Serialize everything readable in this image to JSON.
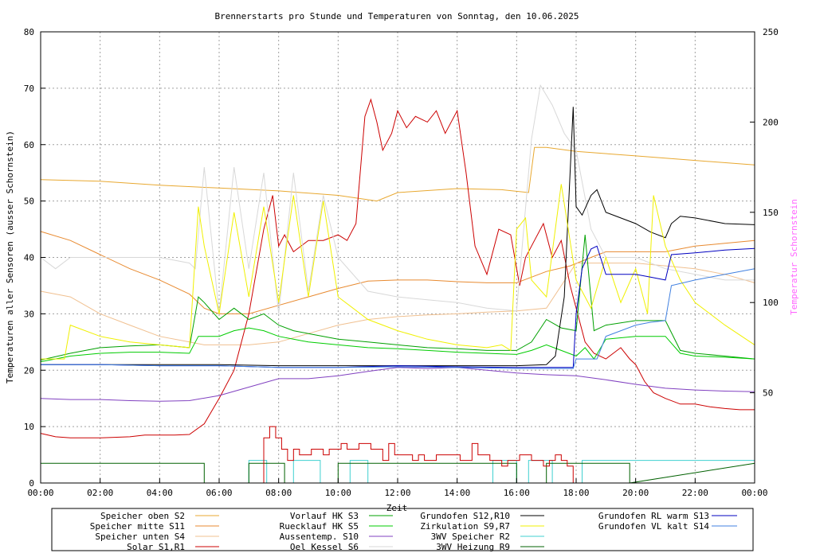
{
  "chart_data": {
    "type": "line",
    "title": "Brennerstarts pro Stunde und Temperaturen von Sonntag, den 10.06.2025",
    "xlabel": "Zeit",
    "ylabel": "Temperaturen aller Sensoren (ausser Schornstein)",
    "y2label": "Temperatur Schornstein",
    "xlim": [
      0,
      24
    ],
    "ylim": [
      0,
      80
    ],
    "y2lim": [
      0,
      250
    ],
    "grid": true,
    "x_ticks": [
      "00:00",
      "02:00",
      "04:00",
      "06:00",
      "08:00",
      "10:00",
      "12:00",
      "14:00",
      "16:00",
      "18:00",
      "20:00",
      "22:00",
      "00:00"
    ],
    "y_ticks": [
      "0",
      "10",
      "20",
      "30",
      "40",
      "50",
      "60",
      "70",
      "80"
    ],
    "y2_ticks": [
      "50",
      "100",
      "150",
      "200",
      "250"
    ],
    "legend_position": "bottom",
    "legend": [
      {
        "name": "Speicher oben",
        "sensor": "S2",
        "color": "#e8a830"
      },
      {
        "name": "Speicher mitte",
        "sensor": "S11",
        "color": "#e88a30"
      },
      {
        "name": "Speicher unten",
        "sensor": "S4",
        "color": "#f0c090"
      },
      {
        "name": "Solar",
        "sensor": "S1,R1",
        "color": "#cc0000"
      },
      {
        "name": "Vorlauf HK",
        "sensor": "S3",
        "color": "#00a000"
      },
      {
        "name": "Ruecklauf HK",
        "sensor": "S5",
        "color": "#00cc00"
      },
      {
        "name": "Aussentemp.",
        "sensor": "S10",
        "color": "#8040c0"
      },
      {
        "name": "Oel Kessel",
        "sensor": "S6",
        "color": "#d8d8d8"
      },
      {
        "name": "Grundofen",
        "sensor": "S12,R10",
        "color": "#000000"
      },
      {
        "name": "Zirkulation",
        "sensor": "S9,R7",
        "color": "#f0f000"
      },
      {
        "name": "3WV Speicher",
        "sensor": "R2",
        "color": "#40d0d0"
      },
      {
        "name": "3WV Heizung",
        "sensor": "R9",
        "color": "#006000"
      },
      {
        "name": "Grundofen RL warm",
        "sensor": "S13",
        "color": "#0000c0"
      },
      {
        "name": "Grundofen VL kalt",
        "sensor": "S14",
        "color": "#4080e0"
      }
    ],
    "series": [
      {
        "name": "Speicher oben",
        "color": "#e8a830",
        "x": [
          0,
          2,
          4,
          6,
          8,
          10,
          11.3,
          12,
          14,
          15.5,
          16.4,
          16.6,
          17,
          18,
          20,
          22,
          24
        ],
        "values": [
          53.8,
          53.5,
          52.8,
          52.3,
          51.8,
          51.0,
          50.0,
          51.5,
          52.2,
          52.0,
          51.5,
          59.5,
          59.5,
          58.8,
          58.0,
          57.2,
          56.4
        ]
      },
      {
        "name": "Speicher mitte",
        "color": "#e88a30",
        "x": [
          0,
          1,
          2,
          3,
          4,
          5,
          5.5,
          6,
          7,
          8,
          9,
          10,
          11,
          12,
          13,
          14,
          15,
          16,
          16.5,
          17,
          17.8,
          18.5,
          19,
          20,
          21,
          22,
          23,
          24
        ],
        "values": [
          44.6,
          43,
          40.5,
          38,
          36,
          33.5,
          31,
          30,
          30,
          31.5,
          33,
          34.5,
          35.8,
          36,
          36,
          35.7,
          35.5,
          35.5,
          36.5,
          37.5,
          38.5,
          40,
          41,
          41,
          41,
          42,
          42.5,
          43
        ]
      },
      {
        "name": "Speicher unten",
        "color": "#f0c090",
        "x": [
          0,
          1,
          2,
          3,
          4,
          5,
          5.5,
          6,
          7,
          8,
          9,
          10,
          11,
          12,
          13,
          14,
          15,
          16,
          17,
          18,
          19,
          20,
          21,
          22,
          23,
          24
        ],
        "values": [
          34,
          33,
          30,
          28,
          26,
          25,
          24.5,
          24.5,
          24.5,
          25,
          26.5,
          28,
          29,
          29.5,
          29.8,
          30,
          30.3,
          30.5,
          31,
          39,
          39,
          39,
          38.5,
          38,
          37,
          35.5
        ]
      },
      {
        "name": "Solar",
        "color": "#cc0000",
        "x": [
          0,
          0.5,
          1,
          2,
          3,
          3.5,
          4,
          4.5,
          5,
          5.5,
          6,
          6.5,
          7,
          7.5,
          7.8,
          8,
          8.2,
          8.5,
          9,
          9.5,
          10,
          10.3,
          10.6,
          10.9,
          11.1,
          11.3,
          11.5,
          11.8,
          12,
          12.3,
          12.6,
          13,
          13.3,
          13.6,
          14,
          14.3,
          14.6,
          15,
          15.4,
          15.8,
          16.1,
          16.3,
          16.6,
          16.9,
          17.2,
          17.5,
          17.8,
          18,
          18.3,
          18.6,
          19,
          19.5,
          19.8,
          20,
          20.3,
          20.6,
          21,
          21.5,
          22,
          22.5,
          23,
          23.5,
          24
        ],
        "values": [
          8.8,
          8.2,
          8,
          8,
          8.2,
          8.5,
          8.5,
          8.5,
          8.6,
          10.5,
          15,
          20,
          30,
          45,
          51,
          42,
          44,
          41,
          43,
          43,
          44,
          43,
          46,
          65,
          68,
          64,
          59,
          62,
          66,
          63,
          65,
          64,
          66,
          62,
          66,
          55,
          42,
          37,
          45,
          44,
          35,
          40,
          43,
          46,
          40,
          43,
          35,
          31,
          25,
          23,
          22,
          24,
          22,
          21,
          18,
          16,
          15,
          14,
          14,
          13.5,
          13.2,
          13,
          13
        ]
      },
      {
        "name": "Vorlauf HK",
        "color": "#00a000",
        "x": [
          0,
          1,
          2,
          3,
          4,
          5,
          5.3,
          5.5,
          6,
          6.5,
          7,
          7.5,
          8,
          8.5,
          9,
          10,
          11,
          12,
          13,
          14,
          15,
          16,
          16.5,
          17,
          17.5,
          18,
          18.3,
          18.6,
          19,
          20,
          21,
          21.5,
          22,
          23,
          24
        ],
        "values": [
          21.8,
          23,
          24,
          24.3,
          24.5,
          24,
          33,
          32,
          29,
          31,
          29,
          30,
          28,
          27,
          26.5,
          25.5,
          25,
          24.5,
          24,
          23.8,
          23.5,
          23.5,
          25,
          29,
          27.5,
          27,
          44,
          27,
          28,
          28.8,
          28.8,
          23.5,
          23,
          22.5,
          22
        ]
      },
      {
        "name": "Ruecklauf HK",
        "color": "#00cc00",
        "x": [
          0,
          1,
          2,
          3,
          4,
          5,
          5.3,
          5.5,
          6,
          6.5,
          7,
          7.5,
          8,
          8.5,
          9,
          10,
          11,
          12,
          13,
          14,
          15,
          16,
          16.5,
          17,
          17.5,
          18,
          18.3,
          18.6,
          19,
          20,
          21,
          21.5,
          22,
          23,
          24
        ],
        "values": [
          21.5,
          22.5,
          23,
          23.2,
          23.2,
          23,
          26,
          26,
          26,
          27,
          27.5,
          27,
          26,
          25.5,
          25,
          24.5,
          24,
          23.8,
          23.5,
          23.2,
          23.0,
          22.8,
          23.5,
          24.5,
          23.5,
          22.5,
          24,
          22,
          25.5,
          26,
          26,
          23,
          22.5,
          22.3,
          22
        ]
      },
      {
        "name": "Aussentemp.",
        "color": "#8040c0",
        "x": [
          0,
          1,
          2,
          3,
          4,
          5,
          6,
          7,
          8,
          9,
          10,
          11,
          12,
          13,
          14,
          15,
          16,
          17,
          18,
          19,
          20,
          21,
          22,
          23,
          24
        ],
        "values": [
          15,
          14.8,
          14.8,
          14.6,
          14.5,
          14.6,
          15.5,
          17,
          18.5,
          18.5,
          19,
          19.8,
          20.5,
          20.3,
          20.5,
          20,
          19.5,
          19.2,
          19,
          18.3,
          17.5,
          16.8,
          16.5,
          16.3,
          16.2
        ]
      },
      {
        "name": "Oel Kessel",
        "color": "#d8d8d8",
        "x": [
          0,
          0.5,
          1,
          2,
          3,
          4,
          5,
          5.2,
          5.5,
          6,
          6.5,
          7,
          7.5,
          8,
          8.5,
          9,
          9.5,
          10,
          11,
          12,
          13,
          14,
          15,
          16,
          16.5,
          16.8,
          17.2,
          17.6,
          18,
          18.5,
          19,
          20,
          21,
          22,
          23,
          24
        ],
        "values": [
          40,
          38,
          40,
          40,
          40,
          40,
          39,
          38,
          56,
          30,
          56,
          38,
          55,
          30,
          55,
          34,
          51,
          40,
          34,
          33,
          32.5,
          32,
          31,
          30.5,
          61,
          70.5,
          67,
          62,
          59,
          45,
          40,
          40,
          38,
          37,
          36,
          36
        ]
      },
      {
        "name": "Grundofen",
        "color": "#000000",
        "x": [
          0,
          2,
          4,
          6,
          8,
          10,
          12,
          14,
          16,
          17,
          17.3,
          17.6,
          17.9,
          18.0,
          18.2,
          18.5,
          18.7,
          19,
          20,
          20.5,
          21,
          21.2,
          21.5,
          22,
          23,
          24
        ],
        "values": [
          21,
          21,
          21,
          21,
          20.8,
          20.8,
          20.8,
          20.8,
          20.8,
          21,
          22.5,
          33,
          66.7,
          49,
          47.5,
          51,
          52,
          48,
          46,
          44.5,
          43.5,
          46,
          47.3,
          47,
          46,
          45.8
        ]
      },
      {
        "name": "Zirkulation",
        "color": "#f0f000",
        "x": [
          0,
          0.8,
          1,
          2,
          3,
          4,
          5,
          5.3,
          5.5,
          6,
          6.5,
          7,
          7.5,
          8,
          8.5,
          9,
          9.5,
          10,
          11,
          12,
          13,
          14,
          15,
          15.5,
          15.8,
          16,
          16.3,
          16.5,
          17,
          17.5,
          18,
          18.5,
          19,
          19.5,
          20,
          20.4,
          20.6,
          21,
          21.5,
          22,
          23,
          24
        ],
        "values": [
          22,
          22,
          28,
          26,
          25,
          24.5,
          24,
          49,
          42,
          30,
          48,
          33,
          49,
          32,
          51,
          33,
          50,
          33,
          29,
          27,
          25.5,
          24.5,
          24,
          24.5,
          23.5,
          45,
          47,
          36,
          33,
          53,
          36,
          31,
          40,
          32,
          38,
          30,
          51,
          42,
          36,
          32,
          28,
          24.5
        ]
      },
      {
        "name": "3WV Speicher",
        "color": "#40d0d0",
        "x": [
          0,
          7,
          7,
          7.6,
          7.6,
          8.5,
          8.5,
          9.4,
          9.4,
          10.4,
          10.4,
          11,
          11,
          15.2,
          15.2,
          16,
          16,
          16.4,
          16.4,
          17.2,
          17.2,
          18.2,
          18.2,
          24
        ],
        "values": [
          0,
          0,
          4,
          4,
          0,
          0,
          4,
          4,
          0,
          0,
          4,
          4,
          0,
          0,
          4,
          4,
          0,
          0,
          4,
          4,
          0,
          0,
          4,
          4
        ]
      },
      {
        "name": "3WV Heizung",
        "color": "#006000",
        "x": [
          0,
          5.5,
          5.5,
          7,
          7,
          8.2,
          8.2,
          10,
          10,
          16,
          16,
          17,
          17,
          19.8,
          19.8,
          24
        ],
        "values": [
          3.5,
          3.5,
          0,
          0,
          3.5,
          3.5,
          0,
          0,
          3.5,
          3.5,
          0,
          0,
          3.5,
          3.5,
          0,
          3.5
        ]
      },
      {
        "name": "Grundofen RL warm",
        "color": "#0000c0",
        "x": [
          0,
          2,
          4,
          6,
          8,
          10,
          12,
          14,
          16,
          17,
          17.9,
          18.0,
          18.2,
          18.5,
          18.7,
          19,
          20,
          20.5,
          21,
          21.2,
          22,
          23,
          24
        ],
        "values": [
          21,
          21,
          20.8,
          20.8,
          20.5,
          20.5,
          20.8,
          20.6,
          20.5,
          20.5,
          20.5,
          30,
          38,
          41.5,
          42,
          37,
          37,
          36.5,
          36,
          40.5,
          40.8,
          41.3,
          41.6
        ]
      },
      {
        "name": "Grundofen VL kalt",
        "color": "#4080e0",
        "x": [
          0,
          2,
          4,
          6,
          8,
          10,
          12,
          14,
          16,
          17,
          17.9,
          18.0,
          18.2,
          18.5,
          18.7,
          19,
          20,
          20.5,
          21,
          21.2,
          22,
          23,
          24
        ],
        "values": [
          21,
          21,
          20.8,
          20.8,
          20.5,
          20.5,
          20.6,
          20.5,
          20.3,
          20.3,
          20.3,
          22,
          22,
          22,
          22,
          26,
          28,
          28.5,
          28.8,
          35,
          36,
          37,
          38
        ]
      },
      {
        "name": "Brennerstarts",
        "color": "#cc0000",
        "x": [
          7.5,
          7.7,
          7.9,
          8.1,
          8.3,
          8.5,
          8.7,
          8.9,
          9.1,
          9.3,
          9.5,
          9.7,
          9.9,
          10.1,
          10.3,
          10.5,
          10.7,
          10.9,
          11.1,
          11.3,
          11.5,
          11.7,
          11.9,
          12.1,
          12.3,
          12.5,
          12.7,
          12.9,
          13.1,
          13.3,
          13.5,
          13.7,
          13.9,
          14.1,
          14.3,
          14.5,
          14.7,
          14.9,
          15.1,
          15.3,
          15.5,
          15.7,
          15.9,
          16.1,
          16.3,
          16.5,
          16.7,
          16.9,
          17.1,
          17.3,
          17.5,
          17.7
        ],
        "values": [
          8,
          10,
          8,
          6,
          4,
          6,
          5,
          5,
          6,
          6,
          5,
          6,
          6,
          7,
          6,
          6,
          7,
          7,
          6,
          6,
          4,
          7,
          5,
          5,
          5,
          4,
          5,
          4,
          4,
          5,
          5,
          5,
          5,
          4,
          4,
          7,
          5,
          5,
          4,
          4,
          3,
          4,
          4,
          5,
          5,
          4,
          4,
          3,
          4,
          5,
          4,
          3
        ]
      }
    ]
  }
}
